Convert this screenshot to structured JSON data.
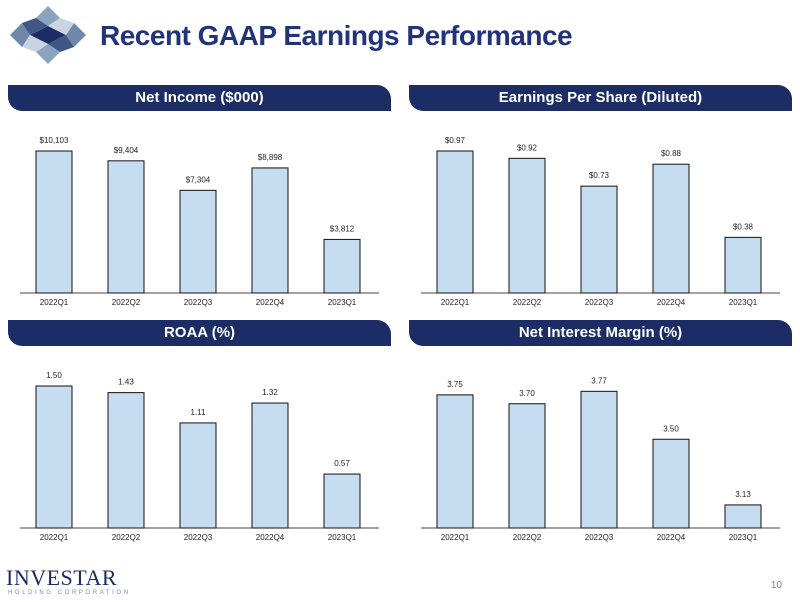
{
  "header": {
    "title": "Recent GAAP Earnings Performance"
  },
  "footer": {
    "brand": "INVESTAR",
    "brand_subtitle": "HOLDING CORPORATION",
    "page_number": "10"
  },
  "colors": {
    "bar_fill": "#c5dcf1",
    "header_bar": "#1c2d66",
    "title": "#23337a"
  },
  "chart_data": [
    {
      "type": "bar",
      "title": "Net Income ($000)",
      "categories": [
        "2022Q1",
        "2022Q2",
        "2022Q3",
        "2022Q4",
        "2023Q1"
      ],
      "values": [
        10103,
        9404,
        7304,
        8898,
        3812
      ],
      "labels": [
        "$10,103",
        "$9,404",
        "$7,304",
        "$8,898",
        "$3,812"
      ],
      "ylim": [
        0,
        10103
      ]
    },
    {
      "type": "bar",
      "title": "Earnings Per Share (Diluted)",
      "categories": [
        "2022Q1",
        "2022Q2",
        "2022Q3",
        "2022Q4",
        "2023Q1"
      ],
      "values": [
        0.97,
        0.92,
        0.73,
        0.88,
        0.38
      ],
      "labels": [
        "$0.97",
        "$0.92",
        "$0.73",
        "$0.88",
        "$0.38"
      ],
      "ylim": [
        0,
        0.97
      ]
    },
    {
      "type": "bar",
      "title": "ROAA (%)",
      "categories": [
        "2022Q1",
        "2022Q2",
        "2022Q3",
        "2022Q4",
        "2023Q1"
      ],
      "values": [
        1.5,
        1.43,
        1.11,
        1.32,
        0.57
      ],
      "labels": [
        "1.50",
        "1.43",
        "1.11",
        "1.32",
        "0.57"
      ],
      "ylim": [
        0,
        1.5
      ]
    },
    {
      "type": "bar",
      "title": "Net Interest Margin (%)",
      "categories": [
        "2022Q1",
        "2022Q2",
        "2022Q3",
        "2022Q4",
        "2023Q1"
      ],
      "values": [
        3.75,
        3.7,
        3.77,
        3.5,
        3.13
      ],
      "labels": [
        "3.75",
        "3.70",
        "3.77",
        "3.50",
        "3.13"
      ],
      "ylim": [
        3.0,
        3.8
      ]
    }
  ]
}
